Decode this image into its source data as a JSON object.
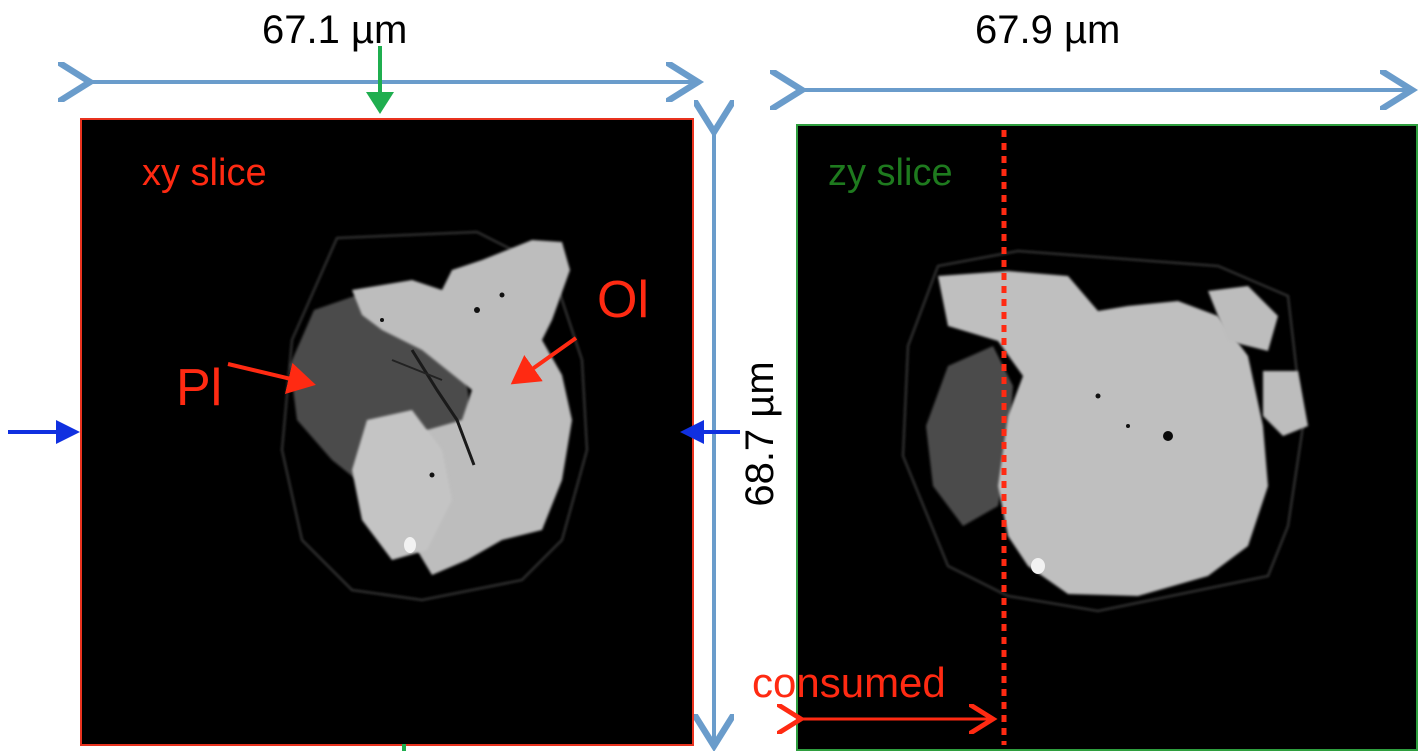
{
  "dimensions": {
    "xy_width": "67.1 µm",
    "zy_width": "67.9 µm",
    "height": "68.7 µm"
  },
  "panels": {
    "xy": {
      "title": "xy slice",
      "title_color": "#ff2a12",
      "border_color": "#e8331f"
    },
    "zy": {
      "title": "zy slice",
      "title_color": "#1e7a1e",
      "border_color": "#2e9e3e"
    }
  },
  "labels": {
    "ol": "Ol",
    "pl": "Pl",
    "consumed": "consumed"
  },
  "colors": {
    "dimension_arrow": "#6a9ccb",
    "marker_blue": "#1030e0",
    "marker_green": "#1fae4f",
    "annotation_red": "#ff2a12",
    "olivine": "#bdbdbd",
    "plagioclase": "#4a4a4a"
  }
}
